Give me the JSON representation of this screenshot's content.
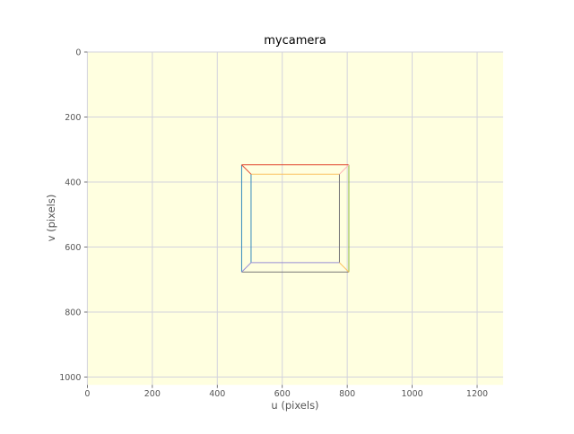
{
  "chart_data": {
    "type": "line",
    "title": "mycamera",
    "xlabel": "u (pixels)",
    "ylabel": "v (pixels)",
    "xlim": [
      0,
      1280
    ],
    "ylim": [
      1024,
      0
    ],
    "y_inverted": true,
    "grid": true,
    "background_color": "#ffffe0",
    "xticks": [
      0,
      200,
      400,
      600,
      800,
      1000,
      1200
    ],
    "yticks": [
      0,
      200,
      400,
      600,
      800,
      1000
    ],
    "series": [
      {
        "color": "#e24a33",
        "x": [
          475,
          805
        ],
        "y": [
          347,
          347
        ]
      },
      {
        "color": "#348abd",
        "x": [
          475,
          475
        ],
        "y": [
          347,
          677
        ]
      },
      {
        "color": "#8eba42",
        "x": [
          805,
          805
        ],
        "y": [
          347,
          677
        ]
      },
      {
        "color": "#777777",
        "x": [
          475,
          805
        ],
        "y": [
          677,
          677
        ]
      },
      {
        "color": "#fbc15e",
        "x": [
          504,
          776
        ],
        "y": [
          376,
          376
        ]
      },
      {
        "color": "#348abd",
        "x": [
          504,
          504
        ],
        "y": [
          376,
          648
        ]
      },
      {
        "color": "#777777",
        "x": [
          776,
          776
        ],
        "y": [
          376,
          648
        ]
      },
      {
        "color": "#988ed5",
        "x": [
          504,
          776
        ],
        "y": [
          648,
          648
        ]
      },
      {
        "color": "#e24a33",
        "x": [
          475,
          504
        ],
        "y": [
          347,
          376
        ]
      },
      {
        "color": "#ffb5b8",
        "x": [
          805,
          776
        ],
        "y": [
          347,
          376
        ]
      },
      {
        "color": "#988ed5",
        "x": [
          475,
          504
        ],
        "y": [
          677,
          648
        ]
      },
      {
        "color": "#fbc15e",
        "x": [
          805,
          776
        ],
        "y": [
          677,
          648
        ]
      }
    ]
  }
}
